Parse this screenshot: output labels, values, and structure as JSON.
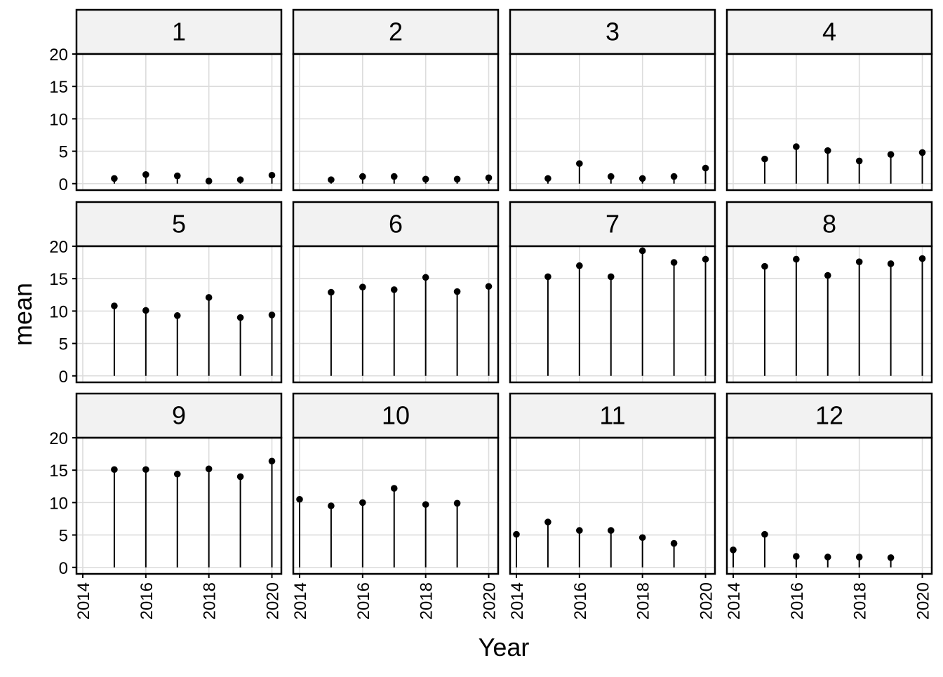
{
  "chart_data": {
    "type": "lollipop",
    "layout": "facet_wrap",
    "xlabel": "Year",
    "ylabel": "mean",
    "ylim": [
      -1,
      20
    ],
    "xlim": [
      2013.8,
      2020.3
    ],
    "yticks": [
      0,
      5,
      10,
      15,
      20
    ],
    "xticks": [
      2014,
      2016,
      2018,
      2020
    ],
    "grid": true,
    "colors": {
      "strip_fill": "#F2F2F2",
      "grid": "#DCDCDC",
      "mark": "#000000",
      "border": "#000000"
    },
    "panels": [
      {
        "label": "1",
        "points": [
          [
            2015,
            0.8
          ],
          [
            2016,
            1.4
          ],
          [
            2017,
            1.2
          ],
          [
            2018,
            0.4
          ],
          [
            2019,
            0.6
          ],
          [
            2020,
            1.3
          ]
        ]
      },
      {
        "label": "2",
        "points": [
          [
            2015,
            0.6
          ],
          [
            2016,
            1.1
          ],
          [
            2017,
            1.1
          ],
          [
            2018,
            0.7
          ],
          [
            2019,
            0.7
          ],
          [
            2020,
            0.9
          ]
        ]
      },
      {
        "label": "3",
        "points": [
          [
            2015,
            0.8
          ],
          [
            2016,
            3.1
          ],
          [
            2017,
            1.1
          ],
          [
            2018,
            0.8
          ],
          [
            2019,
            1.1
          ],
          [
            2020,
            2.4
          ]
        ]
      },
      {
        "label": "4",
        "points": [
          [
            2015,
            3.8
          ],
          [
            2016,
            5.7
          ],
          [
            2017,
            5.1
          ],
          [
            2018,
            3.5
          ],
          [
            2019,
            4.5
          ],
          [
            2020,
            4.8
          ]
        ]
      },
      {
        "label": "5",
        "points": [
          [
            2015,
            10.8
          ],
          [
            2016,
            10.1
          ],
          [
            2017,
            9.3
          ],
          [
            2018,
            12.1
          ],
          [
            2019,
            9.0
          ],
          [
            2020,
            9.4
          ]
        ]
      },
      {
        "label": "6",
        "points": [
          [
            2015,
            12.9
          ],
          [
            2016,
            13.7
          ],
          [
            2017,
            13.3
          ],
          [
            2018,
            15.2
          ],
          [
            2019,
            13.0
          ],
          [
            2020,
            13.8
          ]
        ]
      },
      {
        "label": "7",
        "points": [
          [
            2015,
            15.3
          ],
          [
            2016,
            17.0
          ],
          [
            2017,
            15.3
          ],
          [
            2018,
            19.3
          ],
          [
            2019,
            17.5
          ],
          [
            2020,
            18.0
          ]
        ]
      },
      {
        "label": "8",
        "points": [
          [
            2015,
            16.9
          ],
          [
            2016,
            18.0
          ],
          [
            2017,
            15.5
          ],
          [
            2018,
            17.6
          ],
          [
            2019,
            17.3
          ],
          [
            2020,
            18.1
          ]
        ]
      },
      {
        "label": "9",
        "points": [
          [
            2015,
            15.1
          ],
          [
            2016,
            15.1
          ],
          [
            2017,
            14.4
          ],
          [
            2018,
            15.2
          ],
          [
            2019,
            14.0
          ],
          [
            2020,
            16.4
          ]
        ]
      },
      {
        "label": "10",
        "points": [
          [
            2014,
            10.5
          ],
          [
            2015,
            9.5
          ],
          [
            2016,
            10.0
          ],
          [
            2017,
            12.2
          ],
          [
            2018,
            9.7
          ],
          [
            2019,
            9.9
          ]
        ]
      },
      {
        "label": "11",
        "points": [
          [
            2014,
            5.1
          ],
          [
            2015,
            7.0
          ],
          [
            2016,
            5.7
          ],
          [
            2017,
            5.7
          ],
          [
            2018,
            4.6
          ],
          [
            2019,
            3.7
          ]
        ]
      },
      {
        "label": "12",
        "points": [
          [
            2014,
            2.7
          ],
          [
            2015,
            5.1
          ],
          [
            2016,
            1.7
          ],
          [
            2017,
            1.6
          ],
          [
            2018,
            1.6
          ],
          [
            2019,
            1.5
          ]
        ]
      }
    ]
  }
}
